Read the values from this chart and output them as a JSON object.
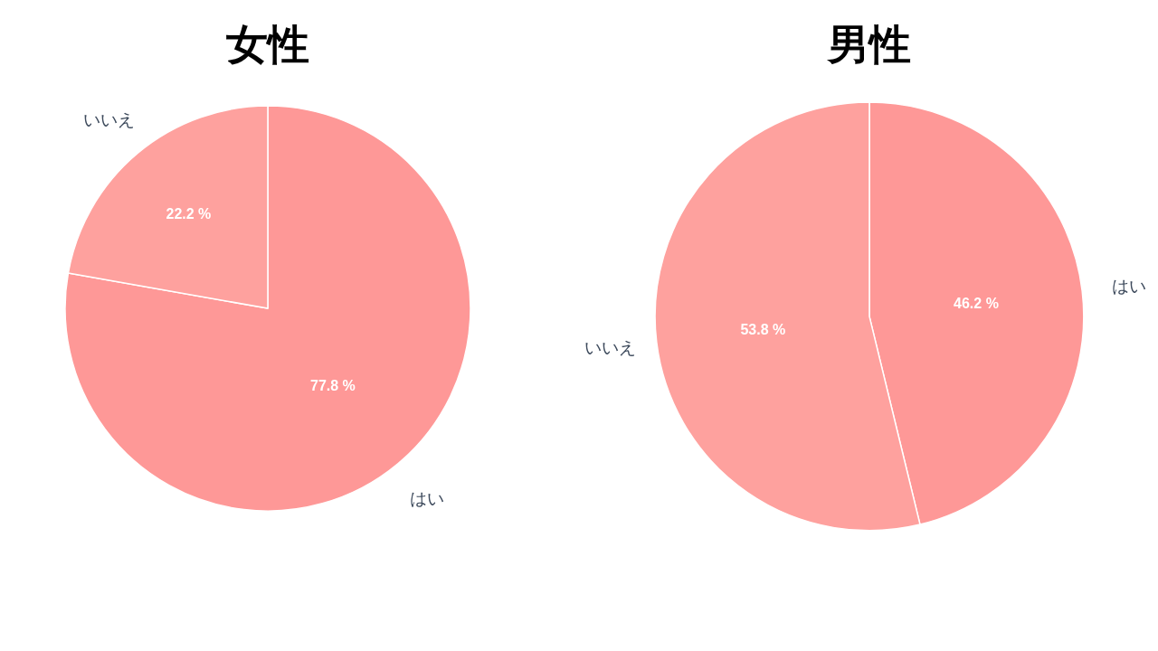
{
  "chart_data": [
    {
      "type": "pie",
      "title": "女性",
      "categories": [
        "はい",
        "いいえ"
      ],
      "values": [
        77.8,
        22.2
      ],
      "colors": [
        "#fe9897",
        "#fea19e"
      ],
      "value_labels": [
        "77.8 %",
        "22.2 %"
      ]
    },
    {
      "type": "pie",
      "title": "男性",
      "categories": [
        "はい",
        "いいえ"
      ],
      "values": [
        46.2,
        53.8
      ],
      "colors": [
        "#fe9897",
        "#fea19e"
      ],
      "value_labels": [
        "46.2 %",
        "53.8 %"
      ]
    }
  ]
}
